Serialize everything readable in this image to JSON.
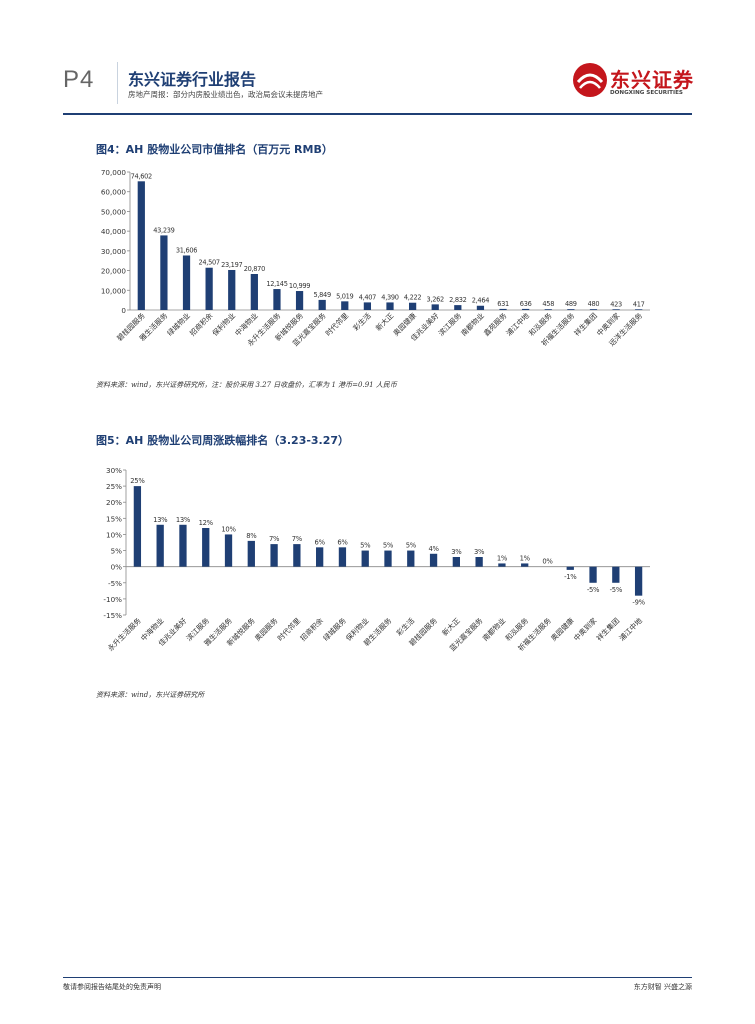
{
  "header": {
    "page_number": "P4",
    "report_title": "东兴证券行业报告",
    "report_subtitle": "房地产周报：部分内房股业绩出色，政治局会议未提房地产",
    "logo_cn": "东兴证券",
    "logo_en": "DONGXING SECURITIES"
  },
  "figures": [
    {
      "title": "图4：AH 股物业公司市值排名（百万元 RMB）",
      "source": "资料来源：wind，东兴证券研究所，注：股价采用 3.27 日收盘价，汇率为 1 港币=0.91 人民币"
    },
    {
      "title": "图5：AH 股物业公司周涨跌幅排名（3.23-3.27）",
      "source": "资料来源：wind，东兴证券研究所"
    }
  ],
  "chart_data": [
    {
      "type": "bar",
      "color": "#1f3f74",
      "categories": [
        "碧桂园服务",
        "雅生活服务",
        "绿城物业",
        "招商积余",
        "保利物业",
        "中海物业",
        "永升生活服务",
        "新城悦服务",
        "蓝光嘉宝服务",
        "时代邻里",
        "彩生活",
        "新大正",
        "奥园健康",
        "佳兆业美好",
        "滨江服务",
        "南都物业",
        "鑫苑服务",
        "浦江中地",
        "和泓服务",
        "祈福生活服务",
        "祥生集团",
        "中奥到家",
        "远洋生活服务"
      ],
      "values": [
        74602,
        43239,
        31606,
        24507,
        23197,
        20870,
        12145,
        10999,
        5849,
        5019,
        4407,
        4390,
        4222,
        3262,
        2832,
        2464,
        631,
        636,
        458,
        489,
        480,
        423,
        417
      ],
      "value_labels": [
        "74,602",
        "43,239",
        "31,606",
        "24,507",
        "23,197",
        "20,870",
        "12,145",
        "10,999",
        "5,849",
        "5,019",
        "4,407",
        "4,390",
        "4,222",
        "3,262",
        "2,832",
        "2,464",
        "631",
        "636",
        "458",
        "489",
        "480",
        "423",
        "417"
      ],
      "ylim": [
        0,
        80000
      ],
      "yticks": [
        "0",
        "10,000",
        "20,000",
        "30,000",
        "40,000",
        "50,000",
        "60,000",
        "70,000"
      ],
      "xlabel": "",
      "ylabel": ""
    },
    {
      "type": "bar",
      "color": "#1f3f74",
      "categories": [
        "永升生活服务",
        "中海物业",
        "佳兆业美好",
        "滨江服务",
        "雅生活服务",
        "新城悦服务",
        "奥园服务",
        "时代邻里",
        "招商积余",
        "绿城服务",
        "保利物业",
        "碧生活服务",
        "彩生活",
        "碧桂园服务",
        "新大正",
        "蓝光嘉宝服务",
        "南都物业",
        "和泓服务",
        "祈福生活服务",
        "奥园健康",
        "中奥到家",
        "祥生集团",
        "浦江中地"
      ],
      "values": [
        25,
        13,
        13,
        12,
        10,
        8,
        7,
        7,
        6,
        6,
        5,
        5,
        5,
        4,
        3,
        3,
        1,
        1,
        0,
        -1,
        -5,
        -5,
        -9
      ],
      "value_labels": [
        "25%",
        "13%",
        "13%",
        "12%",
        "10%",
        "8%",
        "7%",
        "7%",
        "6%",
        "6%",
        "5%",
        "5%",
        "5%",
        "4%",
        "3%",
        "3%",
        "1%",
        "1%",
        "0%",
        "-1%",
        "-5%",
        "-5%",
        "-9%"
      ],
      "ylim": [
        -15,
        30
      ],
      "yticks": [
        "-15%",
        "-10%",
        "-5%",
        "0%",
        "5%",
        "10%",
        "15%",
        "20%",
        "25%",
        "30%"
      ],
      "xlabel": "",
      "ylabel": ""
    }
  ],
  "footer": {
    "disclaimer": "敬请参阅报告结尾处的免责声明",
    "slogan": "东方财智 兴盛之源"
  }
}
